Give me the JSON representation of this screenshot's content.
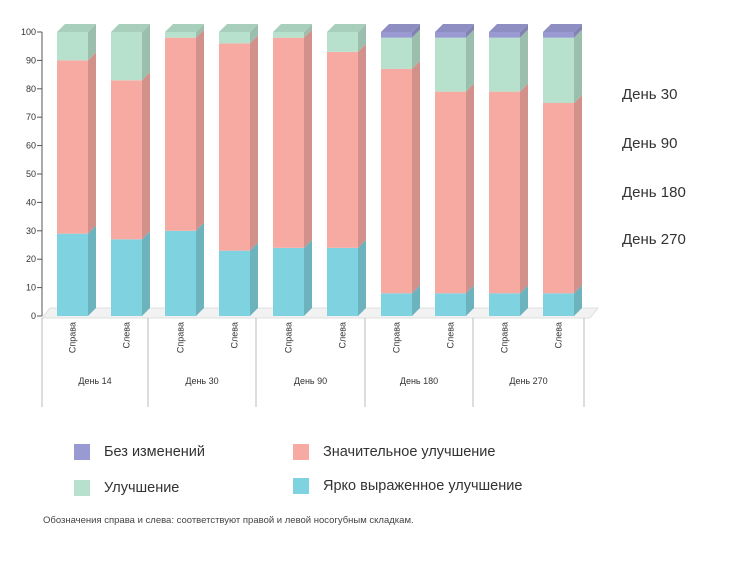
{
  "chart_data": {
    "type": "bar",
    "stacked": true,
    "yticks": [
      "0",
      "10",
      "20",
      "30",
      "40",
      "50",
      "60",
      "70",
      "80",
      "90",
      "100"
    ],
    "ylim": [
      0,
      100
    ],
    "groups": [
      {
        "label": "День 14",
        "bars": [
          "Справа",
          "Слева"
        ]
      },
      {
        "label": "День 30",
        "bars": [
          "Справа",
          "Слева"
        ]
      },
      {
        "label": "День 90",
        "bars": [
          "Справа",
          "Слева"
        ]
      },
      {
        "label": "День 180",
        "bars": [
          "Справа",
          "Слева"
        ]
      },
      {
        "label": "День 270",
        "bars": [
          "Справа",
          "Слева"
        ]
      }
    ],
    "series": [
      {
        "name": "Ярко выраженное улучшение",
        "color": "#7fd3e0",
        "values": [
          29,
          27,
          30,
          23,
          24,
          24,
          8,
          8,
          8,
          8
        ]
      },
      {
        "name": "Значительное улучшение",
        "color": "#f7aaa2",
        "values": [
          61,
          56,
          68,
          73,
          74,
          69,
          79,
          71,
          71,
          67
        ]
      },
      {
        "name": "Улучшение",
        "color": "#b7e1cc",
        "values": [
          10,
          17,
          2,
          4,
          2,
          7,
          11,
          19,
          19,
          23
        ]
      },
      {
        "name": "Без изменений",
        "color": "#9a9ad3",
        "values": [
          0,
          0,
          0,
          0,
          0,
          0,
          2,
          2,
          2,
          2
        ]
      }
    ],
    "annotations": [
      "День 30",
      "День 90",
      "День 180",
      "День 270"
    ]
  },
  "legend": [
    {
      "label": "Без изменений",
      "color": "#9a9ad3"
    },
    {
      "label": "Значительное улучшение",
      "color": "#f7aaa2"
    },
    {
      "label": "Улучшение",
      "color": "#b7e1cc"
    },
    {
      "label": "Ярко выраженное улучшение",
      "color": "#7fd3e0"
    }
  ],
  "footnote": "Обозначения справа и слева: соответствуют правой и левой носогубным складкам."
}
